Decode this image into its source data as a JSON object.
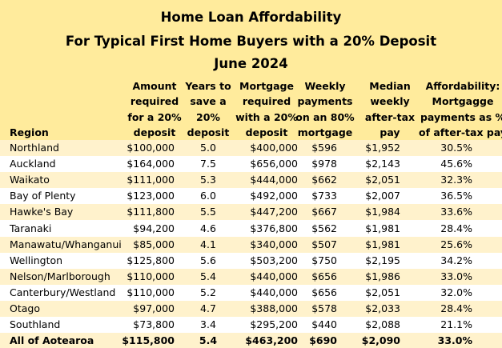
{
  "header": {
    "title": "Home Loan Affordability",
    "subtitle": "For Typical First Home Buyers with a 20% Deposit",
    "date": "June 2024"
  },
  "table": {
    "columns": [
      [
        "Region"
      ],
      [
        "Amount",
        "required",
        "for a 20%",
        "deposit"
      ],
      [
        "Years to",
        "save a",
        "20%",
        "deposit"
      ],
      [
        "Mortgage",
        "required",
        "with a 20%",
        "deposit"
      ],
      [
        "Weekly",
        "payments",
        "on an 80%",
        "mortgage"
      ],
      [
        "Median",
        "weekly",
        "after-tax",
        "pay"
      ],
      [
        "Affordability:",
        "Mortgagge",
        "payments as %",
        "of after-tax pay"
      ]
    ],
    "rows": [
      [
        "Northland",
        "$100,000",
        "5.0",
        "$400,000",
        "$596",
        "$1,952",
        "30.5%"
      ],
      [
        "Auckland",
        "$164,000",
        "7.5",
        "$656,000",
        "$978",
        "$2,143",
        "45.6%"
      ],
      [
        "Waikato",
        "$111,000",
        "5.3",
        "$444,000",
        "$662",
        "$2,051",
        "32.3%"
      ],
      [
        "Bay of Plenty",
        "$123,000",
        "6.0",
        "$492,000",
        "$733",
        "$2,007",
        "36.5%"
      ],
      [
        "Hawke's Bay",
        "$111,800",
        "5.5",
        "$447,200",
        "$667",
        "$1,984",
        "33.6%"
      ],
      [
        "Taranaki",
        "$94,200",
        "4.6",
        "$376,800",
        "$562",
        "$1,981",
        "28.4%"
      ],
      [
        "Manawatu/Whanganui",
        "$85,000",
        "4.1",
        "$340,000",
        "$507",
        "$1,981",
        "25.6%"
      ],
      [
        "Wellington",
        "$125,800",
        "5.6",
        "$503,200",
        "$750",
        "$2,195",
        "34.2%"
      ],
      [
        "Nelson/Marlborough",
        "$110,000",
        "5.4",
        "$440,000",
        "$656",
        "$1,986",
        "33.0%"
      ],
      [
        "Canterbury/Westland",
        "$110,000",
        "5.2",
        "$440,000",
        "$656",
        "$2,051",
        "32.0%"
      ],
      [
        "Otago",
        "$97,000",
        "4.7",
        "$388,000",
        "$578",
        "$2,033",
        "28.4%"
      ],
      [
        "Southland",
        "$73,800",
        "3.4",
        "$295,200",
        "$440",
        "$2,088",
        "21.1%"
      ],
      [
        "All of Aotearoa",
        "$115,800",
        "5.4",
        "$463,200",
        "$690",
        "$2,090",
        "33.0%"
      ]
    ]
  }
}
